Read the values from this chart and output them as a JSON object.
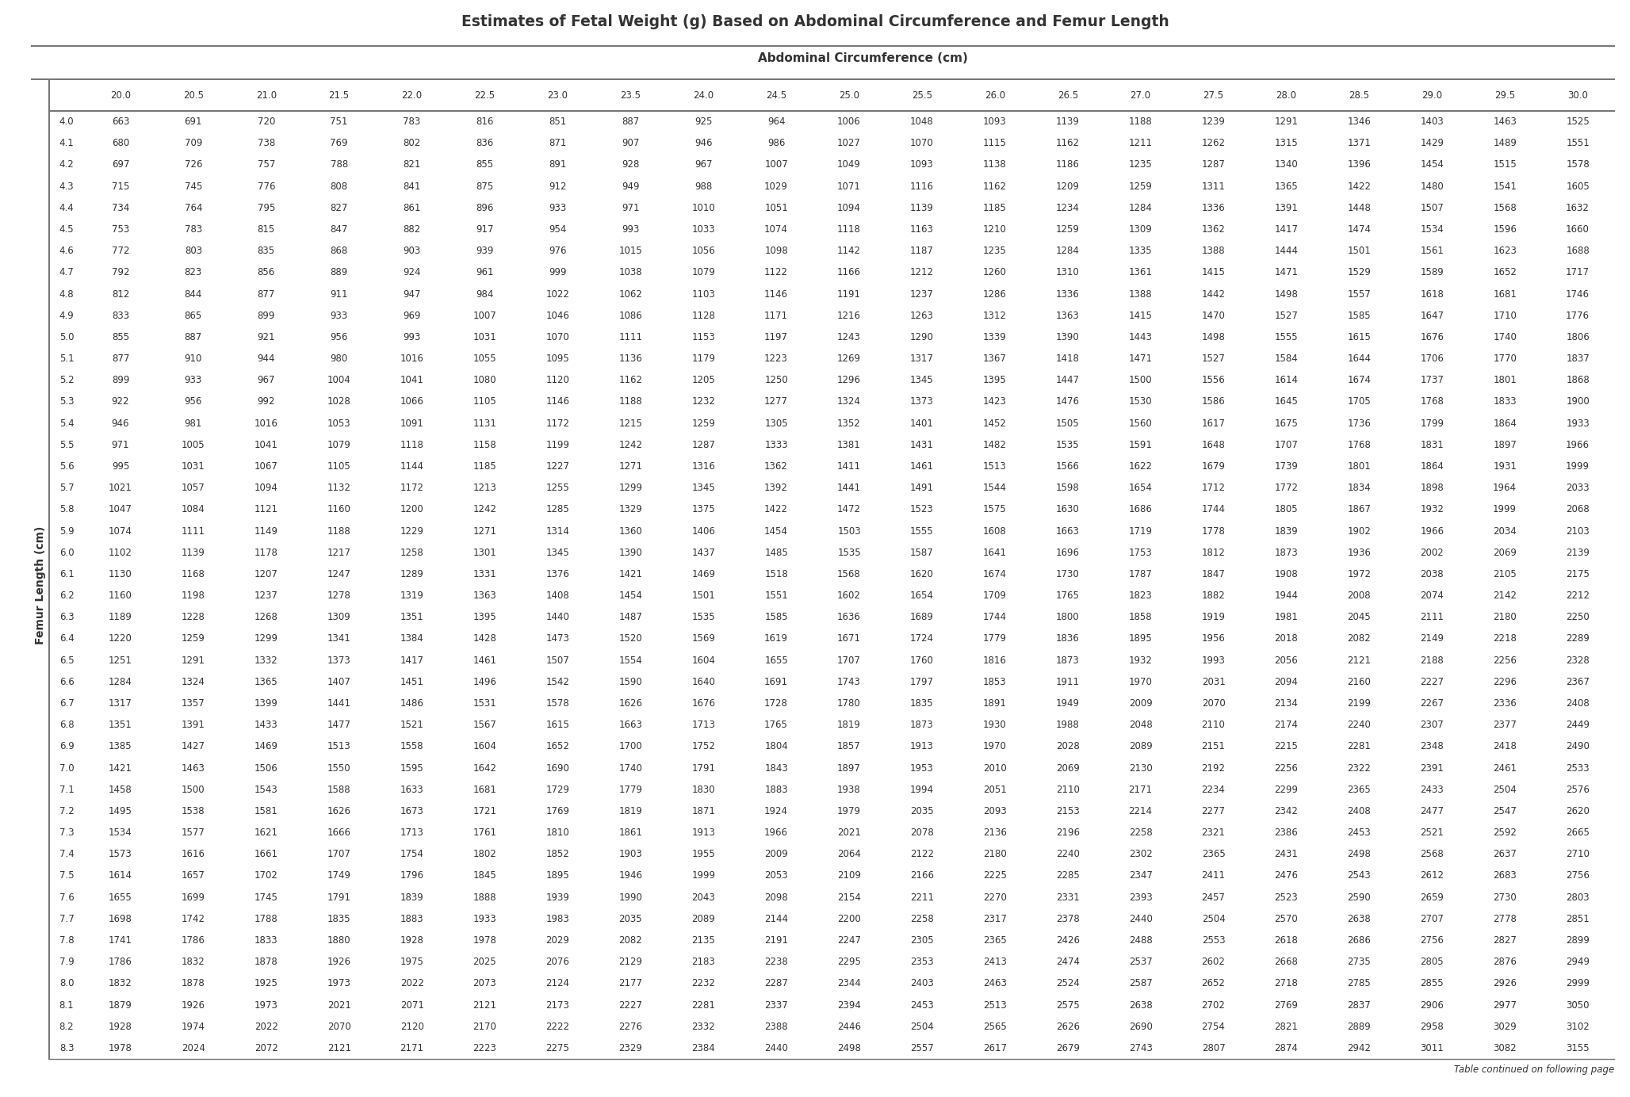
{
  "title": "Estimates of Fetal Weight (g) Based on Abdominal Circumference and Femur Length",
  "col_header_label": "Abdominal Circumference (cm)",
  "row_header_label": "Femur Length (cm)",
  "footer": "Table continued on following page",
  "ac_values": [
    "20.0",
    "20.5",
    "21.0",
    "21.5",
    "22.0",
    "22.5",
    "23.0",
    "23.5",
    "24.0",
    "24.5",
    "25.0",
    "25.5",
    "26.0",
    "26.5",
    "27.0",
    "27.5",
    "28.0",
    "28.5",
    "29.0",
    "29.5",
    "30.0"
  ],
  "fl_values": [
    "4.0",
    "4.1",
    "4.2",
    "4.3",
    "4.4",
    "4.5",
    "4.6",
    "4.7",
    "4.8",
    "4.9",
    "5.0",
    "5.1",
    "5.2",
    "5.3",
    "5.4",
    "5.5",
    "5.6",
    "5.7",
    "5.8",
    "5.9",
    "6.0",
    "6.1",
    "6.2",
    "6.3",
    "6.4",
    "6.5",
    "6.6",
    "6.7",
    "6.8",
    "6.9",
    "7.0",
    "7.1",
    "7.2",
    "7.3",
    "7.4",
    "7.5",
    "7.6",
    "7.7",
    "7.8",
    "7.9",
    "8.0",
    "8.1",
    "8.2",
    "8.3"
  ],
  "table_data": [
    [
      663,
      691,
      720,
      751,
      783,
      816,
      851,
      887,
      925,
      964,
      1006,
      1048,
      1093,
      1139,
      1188,
      1239,
      1291,
      1346,
      1403,
      1463,
      1525
    ],
    [
      680,
      709,
      738,
      769,
      802,
      836,
      871,
      907,
      946,
      986,
      1027,
      1070,
      1115,
      1162,
      1211,
      1262,
      1315,
      1371,
      1429,
      1489,
      1551
    ],
    [
      697,
      726,
      757,
      788,
      821,
      855,
      891,
      928,
      967,
      1007,
      1049,
      1093,
      1138,
      1186,
      1235,
      1287,
      1340,
      1396,
      1454,
      1515,
      1578
    ],
    [
      715,
      745,
      776,
      808,
      841,
      875,
      912,
      949,
      988,
      1029,
      1071,
      1116,
      1162,
      1209,
      1259,
      1311,
      1365,
      1422,
      1480,
      1541,
      1605
    ],
    [
      734,
      764,
      795,
      827,
      861,
      896,
      933,
      971,
      1010,
      1051,
      1094,
      1139,
      1185,
      1234,
      1284,
      1336,
      1391,
      1448,
      1507,
      1568,
      1632
    ],
    [
      753,
      783,
      815,
      847,
      882,
      917,
      954,
      993,
      1033,
      1074,
      1118,
      1163,
      1210,
      1259,
      1309,
      1362,
      1417,
      1474,
      1534,
      1596,
      1660
    ],
    [
      772,
      803,
      835,
      868,
      903,
      939,
      976,
      1015,
      1056,
      1098,
      1142,
      1187,
      1235,
      1284,
      1335,
      1388,
      1444,
      1501,
      1561,
      1623,
      1688
    ],
    [
      792,
      823,
      856,
      889,
      924,
      961,
      999,
      1038,
      1079,
      1122,
      1166,
      1212,
      1260,
      1310,
      1361,
      1415,
      1471,
      1529,
      1589,
      1652,
      1717
    ],
    [
      812,
      844,
      877,
      911,
      947,
      984,
      1022,
      1062,
      1103,
      1146,
      1191,
      1237,
      1286,
      1336,
      1388,
      1442,
      1498,
      1557,
      1618,
      1681,
      1746
    ],
    [
      833,
      865,
      899,
      933,
      969,
      1007,
      1046,
      1086,
      1128,
      1171,
      1216,
      1263,
      1312,
      1363,
      1415,
      1470,
      1527,
      1585,
      1647,
      1710,
      1776
    ],
    [
      855,
      887,
      921,
      956,
      993,
      1031,
      1070,
      1111,
      1153,
      1197,
      1243,
      1290,
      1339,
      1390,
      1443,
      1498,
      1555,
      1615,
      1676,
      1740,
      1806
    ],
    [
      877,
      910,
      944,
      980,
      1016,
      1055,
      1095,
      1136,
      1179,
      1223,
      1269,
      1317,
      1367,
      1418,
      1471,
      1527,
      1584,
      1644,
      1706,
      1770,
      1837
    ],
    [
      899,
      933,
      967,
      1004,
      1041,
      1080,
      1120,
      1162,
      1205,
      1250,
      1296,
      1345,
      1395,
      1447,
      1500,
      1556,
      1614,
      1674,
      1737,
      1801,
      1868
    ],
    [
      922,
      956,
      992,
      1028,
      1066,
      1105,
      1146,
      1188,
      1232,
      1277,
      1324,
      1373,
      1423,
      1476,
      1530,
      1586,
      1645,
      1705,
      1768,
      1833,
      1900
    ],
    [
      946,
      981,
      1016,
      1053,
      1091,
      1131,
      1172,
      1215,
      1259,
      1305,
      1352,
      1401,
      1452,
      1505,
      1560,
      1617,
      1675,
      1736,
      1799,
      1864,
      1933
    ],
    [
      971,
      1005,
      1041,
      1079,
      1118,
      1158,
      1199,
      1242,
      1287,
      1333,
      1381,
      1431,
      1482,
      1535,
      1591,
      1648,
      1707,
      1768,
      1831,
      1897,
      1966
    ],
    [
      995,
      1031,
      1067,
      1105,
      1144,
      1185,
      1227,
      1271,
      1316,
      1362,
      1411,
      1461,
      1513,
      1566,
      1622,
      1679,
      1739,
      1801,
      1864,
      1931,
      1999
    ],
    [
      1021,
      1057,
      1094,
      1132,
      1172,
      1213,
      1255,
      1299,
      1345,
      1392,
      1441,
      1491,
      1544,
      1598,
      1654,
      1712,
      1772,
      1834,
      1898,
      1964,
      2033
    ],
    [
      1047,
      1084,
      1121,
      1160,
      1200,
      1242,
      1285,
      1329,
      1375,
      1422,
      1472,
      1523,
      1575,
      1630,
      1686,
      1744,
      1805,
      1867,
      1932,
      1999,
      2068
    ],
    [
      1074,
      1111,
      1149,
      1188,
      1229,
      1271,
      1314,
      1360,
      1406,
      1454,
      1503,
      1555,
      1608,
      1663,
      1719,
      1778,
      1839,
      1902,
      1966,
      2034,
      2103
    ],
    [
      1102,
      1139,
      1178,
      1217,
      1258,
      1301,
      1345,
      1390,
      1437,
      1485,
      1535,
      1587,
      1641,
      1696,
      1753,
      1812,
      1873,
      1936,
      2002,
      2069,
      2139
    ],
    [
      1130,
      1168,
      1207,
      1247,
      1289,
      1331,
      1376,
      1421,
      1469,
      1518,
      1568,
      1620,
      1674,
      1730,
      1787,
      1847,
      1908,
      1972,
      2038,
      2105,
      2175
    ],
    [
      1160,
      1198,
      1237,
      1278,
      1319,
      1363,
      1408,
      1454,
      1501,
      1551,
      1602,
      1654,
      1709,
      1765,
      1823,
      1882,
      1944,
      2008,
      2074,
      2142,
      2212
    ],
    [
      1189,
      1228,
      1268,
      1309,
      1351,
      1395,
      1440,
      1487,
      1535,
      1585,
      1636,
      1689,
      1744,
      1800,
      1858,
      1919,
      1981,
      2045,
      2111,
      2180,
      2250
    ],
    [
      1220,
      1259,
      1299,
      1341,
      1384,
      1428,
      1473,
      1520,
      1569,
      1619,
      1671,
      1724,
      1779,
      1836,
      1895,
      1956,
      2018,
      2082,
      2149,
      2218,
      2289
    ],
    [
      1251,
      1291,
      1332,
      1373,
      1417,
      1461,
      1507,
      1554,
      1604,
      1655,
      1707,
      1760,
      1816,
      1873,
      1932,
      1993,
      2056,
      2121,
      2188,
      2256,
      2328
    ],
    [
      1284,
      1324,
      1365,
      1407,
      1451,
      1496,
      1542,
      1590,
      1640,
      1691,
      1743,
      1797,
      1853,
      1911,
      1970,
      2031,
      2094,
      2160,
      2227,
      2296,
      2367
    ],
    [
      1317,
      1357,
      1399,
      1441,
      1486,
      1531,
      1578,
      1626,
      1676,
      1728,
      1780,
      1835,
      1891,
      1949,
      2009,
      2070,
      2134,
      2199,
      2267,
      2336,
      2408
    ],
    [
      1351,
      1391,
      1433,
      1477,
      1521,
      1567,
      1615,
      1663,
      1713,
      1765,
      1819,
      1873,
      1930,
      1988,
      2048,
      2110,
      2174,
      2240,
      2307,
      2377,
      2449
    ],
    [
      1385,
      1427,
      1469,
      1513,
      1558,
      1604,
      1652,
      1700,
      1752,
      1804,
      1857,
      1913,
      1970,
      2028,
      2089,
      2151,
      2215,
      2281,
      2348,
      2418,
      2490
    ],
    [
      1421,
      1463,
      1506,
      1550,
      1595,
      1642,
      1690,
      1740,
      1791,
      1843,
      1897,
      1953,
      2010,
      2069,
      2130,
      2192,
      2256,
      2322,
      2391,
      2461,
      2533
    ],
    [
      1458,
      1500,
      1543,
      1588,
      1633,
      1681,
      1729,
      1779,
      1830,
      1883,
      1938,
      1994,
      2051,
      2110,
      2171,
      2234,
      2299,
      2365,
      2433,
      2504,
      2576
    ],
    [
      1495,
      1538,
      1581,
      1626,
      1673,
      1721,
      1769,
      1819,
      1871,
      1924,
      1979,
      2035,
      2093,
      2153,
      2214,
      2277,
      2342,
      2408,
      2477,
      2547,
      2620
    ],
    [
      1534,
      1577,
      1621,
      1666,
      1713,
      1761,
      1810,
      1861,
      1913,
      1966,
      2021,
      2078,
      2136,
      2196,
      2258,
      2321,
      2386,
      2453,
      2521,
      2592,
      2665
    ],
    [
      1573,
      1616,
      1661,
      1707,
      1754,
      1802,
      1852,
      1903,
      1955,
      2009,
      2064,
      2122,
      2180,
      2240,
      2302,
      2365,
      2431,
      2498,
      2568,
      2637,
      2710
    ],
    [
      1614,
      1657,
      1702,
      1749,
      1796,
      1845,
      1895,
      1946,
      1999,
      2053,
      2109,
      2166,
      2225,
      2285,
      2347,
      2411,
      2476,
      2543,
      2612,
      2683,
      2756
    ],
    [
      1655,
      1699,
      1745,
      1791,
      1839,
      1888,
      1939,
      1990,
      2043,
      2098,
      2154,
      2211,
      2270,
      2331,
      2393,
      2457,
      2523,
      2590,
      2659,
      2730,
      2803
    ],
    [
      1698,
      1742,
      1788,
      1835,
      1883,
      1933,
      1983,
      2035,
      2089,
      2144,
      2200,
      2258,
      2317,
      2378,
      2440,
      2504,
      2570,
      2638,
      2707,
      2778,
      2851
    ],
    [
      1741,
      1786,
      1833,
      1880,
      1928,
      1978,
      2029,
      2082,
      2135,
      2191,
      2247,
      2305,
      2365,
      2426,
      2488,
      2553,
      2618,
      2686,
      2756,
      2827,
      2899
    ],
    [
      1786,
      1832,
      1878,
      1926,
      1975,
      2025,
      2076,
      2129,
      2183,
      2238,
      2295,
      2353,
      2413,
      2474,
      2537,
      2602,
      2668,
      2735,
      2805,
      2876,
      2949
    ],
    [
      1832,
      1878,
      1925,
      1973,
      2022,
      2073,
      2124,
      2177,
      2232,
      2287,
      2344,
      2403,
      2463,
      2524,
      2587,
      2652,
      2718,
      2785,
      2855,
      2926,
      2999
    ],
    [
      1879,
      1926,
      1973,
      2021,
      2071,
      2121,
      2173,
      2227,
      2281,
      2337,
      2394,
      2453,
      2513,
      2575,
      2638,
      2702,
      2769,
      2837,
      2906,
      2977,
      3050
    ],
    [
      1928,
      1974,
      2022,
      2070,
      2120,
      2170,
      2222,
      2276,
      2332,
      2388,
      2446,
      2504,
      2565,
      2626,
      2690,
      2754,
      2821,
      2889,
      2958,
      3029,
      3102
    ],
    [
      1978,
      2024,
      2072,
      2121,
      2171,
      2223,
      2275,
      2329,
      2384,
      2440,
      2498,
      2557,
      2617,
      2679,
      2743,
      2807,
      2874,
      2942,
      3011,
      3082,
      3155
    ]
  ],
  "bg_color": "#ffffff",
  "text_color": "#333333",
  "line_color": "#777777",
  "title_fontsize": 13.5,
  "header_fontsize": 11,
  "cell_fontsize": 8.5,
  "fl_label_fontsize": 10
}
